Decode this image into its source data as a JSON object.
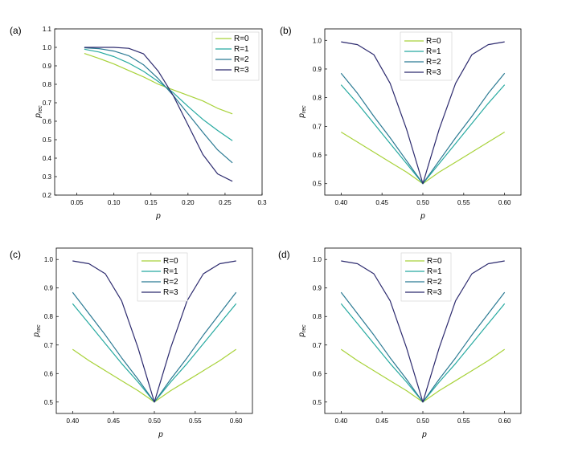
{
  "chart_data": [
    {
      "type": "line",
      "panel_label": "(a)",
      "xlabel": "p",
      "ylabel": "p",
      "ylabel_sub": "rec",
      "xlim": [
        0.02,
        0.3
      ],
      "ylim": [
        0.2,
        1.1
      ],
      "x_ticks": [
        0.05,
        0.1,
        0.15,
        0.2,
        0.25,
        0.3
      ],
      "x_tick_labels": [
        "0.05",
        "0.10",
        "0.15",
        "0.20",
        "0.25",
        "0.3"
      ],
      "y_ticks": [
        0.2,
        0.3,
        0.4,
        0.5,
        0.6,
        0.7,
        0.8,
        0.9,
        1.0,
        1.1
      ],
      "y_tick_labels": [
        "0.2",
        "0.3",
        "0.4",
        "0.5",
        "0.6",
        "0.7",
        "0.8",
        "0.9",
        "1.0",
        "1.1"
      ],
      "legend_position": "top-right",
      "x": [
        0.06,
        0.08,
        0.1,
        0.12,
        0.14,
        0.16,
        0.18,
        0.2,
        0.22,
        0.24,
        0.26
      ],
      "series": [
        {
          "name": "R=0",
          "color": "#a8d23a",
          "values": [
            0.967,
            0.94,
            0.91,
            0.875,
            0.84,
            0.8,
            0.77,
            0.74,
            0.71,
            0.67,
            0.64
          ]
        },
        {
          "name": "R=1",
          "color": "#26a9a0",
          "values": [
            0.99,
            0.975,
            0.95,
            0.915,
            0.87,
            0.815,
            0.755,
            0.68,
            0.61,
            0.55,
            0.495
          ]
        },
        {
          "name": "R=2",
          "color": "#2b7a93",
          "values": [
            0.998,
            0.993,
            0.98,
            0.955,
            0.905,
            0.83,
            0.74,
            0.64,
            0.54,
            0.445,
            0.375
          ]
        },
        {
          "name": "R=3",
          "color": "#2c2a6e",
          "values": [
            1.0,
            1.0,
            1.0,
            0.995,
            0.965,
            0.87,
            0.74,
            0.58,
            0.42,
            0.315,
            0.275
          ]
        }
      ]
    },
    {
      "type": "line",
      "panel_label": "(b)",
      "xlabel": "p",
      "ylabel": "p",
      "ylabel_sub": "rec",
      "xlim": [
        0.38,
        0.62
      ],
      "ylim": [
        0.46,
        1.04
      ],
      "x_ticks": [
        0.4,
        0.45,
        0.5,
        0.55,
        0.6
      ],
      "x_tick_labels": [
        "0.40",
        "0.45",
        "0.50",
        "0.55",
        "0.60"
      ],
      "y_ticks": [
        0.5,
        0.6,
        0.7,
        0.8,
        0.9,
        1.0
      ],
      "y_tick_labels": [
        "0.5",
        "0.6",
        "0.7",
        "0.8",
        "0.9",
        "1.0"
      ],
      "legend_position": "top-center",
      "x": [
        0.4,
        0.42,
        0.44,
        0.46,
        0.48,
        0.5,
        0.52,
        0.54,
        0.56,
        0.58,
        0.6
      ],
      "series": [
        {
          "name": "R=0",
          "color": "#a8d23a",
          "values": [
            0.68,
            0.645,
            0.61,
            0.575,
            0.54,
            0.5,
            0.54,
            0.575,
            0.61,
            0.645,
            0.68
          ]
        },
        {
          "name": "R=1",
          "color": "#26a9a0",
          "values": [
            0.845,
            0.78,
            0.71,
            0.64,
            0.57,
            0.5,
            0.57,
            0.64,
            0.71,
            0.78,
            0.845
          ]
        },
        {
          "name": "R=2",
          "color": "#2b7a93",
          "values": [
            0.885,
            0.815,
            0.735,
            0.66,
            0.58,
            0.5,
            0.58,
            0.66,
            0.735,
            0.815,
            0.885
          ]
        },
        {
          "name": "R=3",
          "color": "#2c2a6e",
          "values": [
            0.995,
            0.985,
            0.95,
            0.85,
            0.69,
            0.5,
            0.69,
            0.85,
            0.95,
            0.985,
            0.995
          ]
        }
      ]
    },
    {
      "type": "line",
      "panel_label": "(c)",
      "xlabel": "p",
      "ylabel": "p",
      "ylabel_sub": "rec",
      "xlim": [
        0.38,
        0.62
      ],
      "ylim": [
        0.46,
        1.04
      ],
      "x_ticks": [
        0.4,
        0.45,
        0.5,
        0.55,
        0.6
      ],
      "x_tick_labels": [
        "0.40",
        "0.45",
        "0.50",
        "0.55",
        "0.60"
      ],
      "y_ticks": [
        0.5,
        0.6,
        0.7,
        0.8,
        0.9,
        1.0
      ],
      "y_tick_labels": [
        "0.5",
        "0.6",
        "0.7",
        "0.8",
        "0.9",
        "1.0"
      ],
      "legend_position": "top-center",
      "x": [
        0.4,
        0.42,
        0.44,
        0.46,
        0.48,
        0.5,
        0.52,
        0.54,
        0.56,
        0.58,
        0.6
      ],
      "series": [
        {
          "name": "R=0",
          "color": "#a8d23a",
          "values": [
            0.685,
            0.645,
            0.61,
            0.575,
            0.54,
            0.5,
            0.54,
            0.575,
            0.61,
            0.645,
            0.685
          ]
        },
        {
          "name": "R=1",
          "color": "#26a9a0",
          "values": [
            0.845,
            0.775,
            0.705,
            0.635,
            0.57,
            0.5,
            0.57,
            0.635,
            0.705,
            0.775,
            0.845
          ]
        },
        {
          "name": "R=2",
          "color": "#2b7a93",
          "values": [
            0.885,
            0.81,
            0.735,
            0.655,
            0.58,
            0.5,
            0.58,
            0.655,
            0.735,
            0.81,
            0.885
          ]
        },
        {
          "name": "R=3",
          "color": "#2c2a6e",
          "values": [
            0.995,
            0.985,
            0.95,
            0.855,
            0.69,
            0.5,
            0.69,
            0.855,
            0.95,
            0.985,
            0.995
          ]
        }
      ]
    },
    {
      "type": "line",
      "panel_label": "(d)",
      "xlabel": "p",
      "ylabel": "p",
      "ylabel_sub": "rec",
      "xlim": [
        0.38,
        0.62
      ],
      "ylim": [
        0.46,
        1.04
      ],
      "x_ticks": [
        0.4,
        0.45,
        0.5,
        0.55,
        0.6
      ],
      "x_tick_labels": [
        "0.40",
        "0.45",
        "0.50",
        "0.55",
        "0.60"
      ],
      "y_ticks": [
        0.5,
        0.6,
        0.7,
        0.8,
        0.9,
        1.0
      ],
      "y_tick_labels": [
        "0.5",
        "0.6",
        "0.7",
        "0.8",
        "0.9",
        "1.0"
      ],
      "legend_position": "top-center",
      "x": [
        0.4,
        0.42,
        0.44,
        0.46,
        0.48,
        0.5,
        0.52,
        0.54,
        0.56,
        0.58,
        0.6
      ],
      "series": [
        {
          "name": "R=0",
          "color": "#a8d23a",
          "values": [
            0.685,
            0.645,
            0.61,
            0.575,
            0.54,
            0.5,
            0.54,
            0.575,
            0.61,
            0.645,
            0.685
          ]
        },
        {
          "name": "R=1",
          "color": "#26a9a0",
          "values": [
            0.845,
            0.775,
            0.705,
            0.635,
            0.57,
            0.5,
            0.57,
            0.635,
            0.705,
            0.775,
            0.845
          ]
        },
        {
          "name": "R=2",
          "color": "#2b7a93",
          "values": [
            0.885,
            0.81,
            0.735,
            0.655,
            0.58,
            0.5,
            0.58,
            0.655,
            0.735,
            0.81,
            0.885
          ]
        },
        {
          "name": "R=3",
          "color": "#2c2a6e",
          "values": [
            0.995,
            0.985,
            0.95,
            0.855,
            0.69,
            0.5,
            0.69,
            0.855,
            0.95,
            0.985,
            0.995
          ]
        }
      ]
    }
  ]
}
